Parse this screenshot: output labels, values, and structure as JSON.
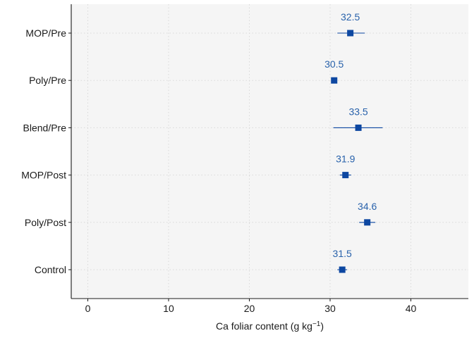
{
  "chart_data": {
    "type": "scatter",
    "orientation": "horizontal",
    "categories": [
      "MOP/Pre",
      "Poly/Pre",
      "Blend/Pre",
      "MOP/Post",
      "Poly/Post",
      "Control"
    ],
    "series": [
      {
        "values": [
          32.5,
          30.5,
          33.5,
          31.9,
          34.6,
          31.5
        ],
        "error_low": [
          30.9,
          30.2,
          30.4,
          31.2,
          33.6,
          30.9
        ],
        "error_high": [
          34.3,
          30.8,
          36.5,
          32.6,
          35.6,
          32.1
        ],
        "labels": [
          "32.5",
          "30.5",
          "33.5",
          "31.9",
          "34.6",
          "31.5"
        ],
        "color": "#0d47a1",
        "label_color": "#2962ab"
      }
    ],
    "xlabel": "Ca foliar content (g  kg",
    "xlabel_superscript": "−1",
    "xlabel_suffix": ")",
    "xlim": [
      -2,
      47
    ],
    "xticks": [
      0,
      10,
      20,
      30,
      40
    ],
    "xtick_labels": [
      "0",
      "10",
      "20",
      "30",
      "40"
    ],
    "grid": true,
    "panel_background": "#f5f5f5",
    "grid_color": "#d9d9d9"
  }
}
